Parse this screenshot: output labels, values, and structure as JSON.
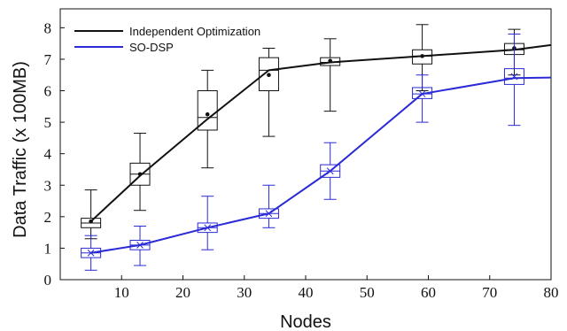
{
  "chart_data": {
    "type": "line",
    "xlabel": "Nodes",
    "ylabel": "Data Traffic  (x 100MB)",
    "xlim": [
      0,
      80
    ],
    "ylim": [
      0,
      8.6
    ],
    "x_ticks": [
      10,
      20,
      30,
      40,
      50,
      60,
      70,
      80
    ],
    "y_ticks": [
      0,
      1,
      2,
      3,
      4,
      5,
      6,
      7,
      8
    ],
    "grid": false,
    "legend_position": "top-left",
    "series": [
      {
        "name": "Independent Optimization",
        "color": "#111111",
        "line_x": [
          5,
          13,
          24,
          34,
          44,
          59,
          74,
          80
        ],
        "line_y": [
          1.85,
          3.3,
          5.1,
          6.65,
          6.9,
          7.1,
          7.3,
          7.45
        ],
        "mean_marker": "dot",
        "boxes": [
          {
            "x": 5,
            "min": 1.3,
            "q1": 1.65,
            "median": 1.8,
            "q3": 1.95,
            "max": 2.85,
            "mean": 1.85
          },
          {
            "x": 13,
            "min": 2.2,
            "q1": 3.0,
            "median": 3.35,
            "q3": 3.7,
            "max": 4.65,
            "mean": 3.35
          },
          {
            "x": 24,
            "min": 3.55,
            "q1": 4.75,
            "median": 5.15,
            "q3": 6.0,
            "max": 6.65,
            "mean": 5.25
          },
          {
            "x": 34,
            "min": 4.55,
            "q1": 6.0,
            "median": 6.65,
            "q3": 7.05,
            "max": 7.35,
            "mean": 6.5
          },
          {
            "x": 44,
            "min": 5.35,
            "q1": 6.8,
            "median": 6.9,
            "q3": 7.05,
            "max": 7.65,
            "mean": 6.95
          },
          {
            "x": 59,
            "min": 6.0,
            "q1": 6.85,
            "median": 7.1,
            "q3": 7.3,
            "max": 8.1,
            "mean": 7.1
          },
          {
            "x": 74,
            "min": 6.5,
            "q1": 7.15,
            "median": 7.3,
            "q3": 7.5,
            "max": 7.95,
            "mean": 7.35
          }
        ]
      },
      {
        "name": "SO-DSP",
        "color": "#2a2ad6",
        "line_x": [
          5,
          13,
          24,
          34,
          44,
          59,
          74,
          80
        ],
        "line_y": [
          0.85,
          1.1,
          1.65,
          2.1,
          3.45,
          5.9,
          6.4,
          6.42
        ],
        "mean_marker": "x",
        "boxes": [
          {
            "x": 5,
            "min": 0.3,
            "q1": 0.7,
            "median": 0.85,
            "q3": 1.0,
            "max": 1.4,
            "mean": 0.85
          },
          {
            "x": 13,
            "min": 0.45,
            "q1": 0.95,
            "median": 1.1,
            "q3": 1.25,
            "max": 1.7,
            "mean": 1.1
          },
          {
            "x": 24,
            "min": 0.95,
            "q1": 1.5,
            "median": 1.65,
            "q3": 1.8,
            "max": 2.65,
            "mean": 1.65
          },
          {
            "x": 34,
            "min": 1.65,
            "q1": 1.95,
            "median": 2.1,
            "q3": 2.25,
            "max": 3.0,
            "mean": 2.1
          },
          {
            "x": 44,
            "min": 2.55,
            "q1": 3.25,
            "median": 3.45,
            "q3": 3.65,
            "max": 4.35,
            "mean": 3.45
          },
          {
            "x": 59,
            "min": 5.0,
            "q1": 5.75,
            "median": 5.9,
            "q3": 6.1,
            "max": 6.5,
            "mean": 5.9
          },
          {
            "x": 74,
            "min": 4.9,
            "q1": 6.2,
            "median": 6.4,
            "q3": 6.7,
            "max": 7.8,
            "mean": 6.45
          }
        ]
      }
    ]
  }
}
